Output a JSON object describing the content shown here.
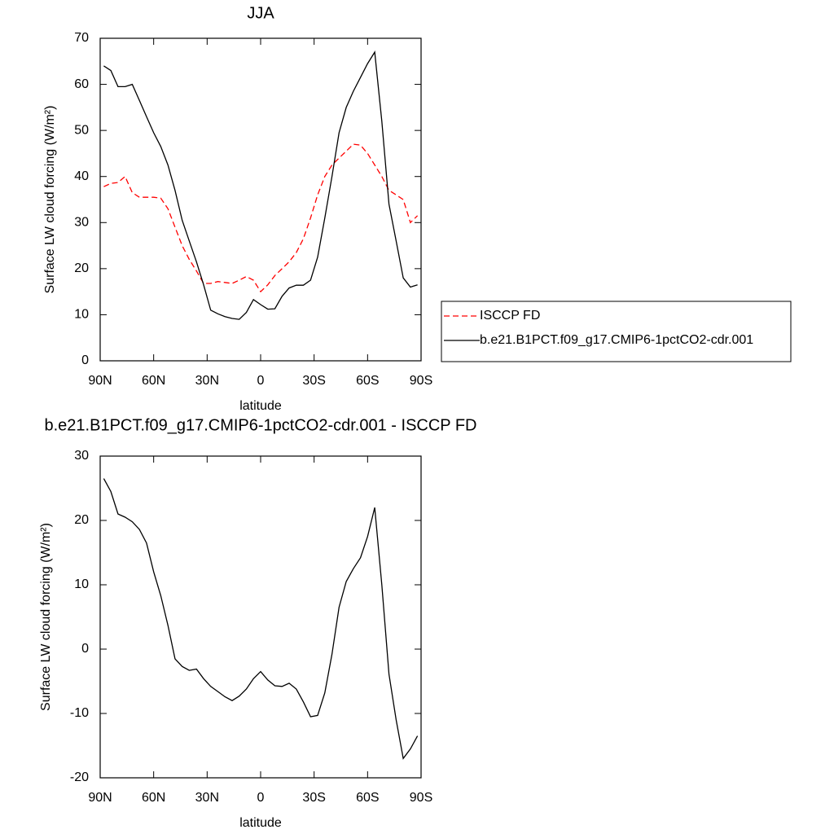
{
  "chart_data": [
    {
      "type": "line",
      "title": "JJA",
      "xlabel": "latitude",
      "ylabel": "Surface LW cloud forcing (W/m²)",
      "x": [
        88,
        84,
        80,
        76,
        72,
        68,
        64,
        60,
        56,
        52,
        48,
        44,
        40,
        36,
        32,
        28,
        24,
        20,
        16,
        12,
        8,
        4,
        0,
        -4,
        -8,
        -12,
        -16,
        -20,
        -24,
        -28,
        -32,
        -36,
        -40,
        -44,
        -48,
        -52,
        -56,
        -60,
        -64,
        -68,
        -72,
        -76,
        -80,
        -84,
        -88
      ],
      "series": [
        {
          "name": "ISCCP FD",
          "color": "#ff0000",
          "dash": true,
          "values": [
            37.8,
            38.5,
            38.7,
            40,
            36.5,
            35.5,
            35.5,
            35.5,
            35.3,
            33,
            29,
            25,
            22,
            19.5,
            16.8,
            16.8,
            17.2,
            17,
            16.8,
            17.5,
            18.3,
            17.5,
            15,
            16.5,
            18.5,
            20,
            21.5,
            23.5,
            26.5,
            31,
            36,
            40,
            42.5,
            44,
            45.5,
            47,
            46.8,
            45,
            42.5,
            40,
            37,
            36,
            35,
            30,
            31.5
          ]
        },
        {
          "name": "b.e21.B1PCT.f09_g17.CMIP6-1pctCO2-cdr.001",
          "color": "#000000",
          "dash": false,
          "values": [
            64,
            63,
            59.5,
            59.5,
            60,
            56.5,
            53,
            49.5,
            46.5,
            42.5,
            37,
            30.5,
            26,
            21.5,
            16.5,
            11,
            10.2,
            9.6,
            9.2,
            9,
            10.5,
            13.3,
            12.2,
            11.2,
            11.3,
            14,
            15.8,
            16.4,
            16.4,
            17.5,
            22.5,
            31,
            40,
            49.5,
            55,
            58.5,
            61.5,
            64.5,
            67,
            52,
            34,
            26,
            18,
            16,
            16.5
          ]
        }
      ],
      "xlim": [
        90,
        -90
      ],
      "xticks": [
        {
          "value": 90,
          "label": "90N"
        },
        {
          "value": 60,
          "label": "60N"
        },
        {
          "value": 30,
          "label": "30N"
        },
        0,
        {
          "value": -30,
          "label": "30S"
        },
        {
          "value": -60,
          "label": "60S"
        },
        {
          "value": -90,
          "label": "90S"
        }
      ],
      "ylim": [
        0,
        70
      ],
      "yticks": [
        0,
        10,
        20,
        30,
        40,
        50,
        60,
        70
      ],
      "legend": "outside-right"
    },
    {
      "type": "line",
      "title": "b.e21.B1PCT.f09_g17.CMIP6-1pctCO2-cdr.001 - ISCCP FD",
      "xlabel": "latitude",
      "ylabel": "Surface LW cloud forcing (W/m²)",
      "x": [
        88,
        84,
        80,
        76,
        72,
        68,
        64,
        60,
        56,
        52,
        48,
        44,
        40,
        36,
        32,
        28,
        24,
        20,
        16,
        12,
        8,
        4,
        0,
        -4,
        -8,
        -12,
        -16,
        -20,
        -24,
        -28,
        -32,
        -36,
        -40,
        -44,
        -48,
        -52,
        -56,
        -60,
        -64,
        -68,
        -72,
        -76,
        -80,
        -84,
        -88
      ],
      "series": [
        {
          "color": "#000000",
          "dash": false,
          "values": [
            26.5,
            24.5,
            21,
            20.5,
            19.8,
            18.6,
            16.5,
            12,
            8.3,
            3.7,
            -1.5,
            -2.7,
            -3.3,
            -3.1,
            -4.6,
            -5.8,
            -6.6,
            -7.4,
            -8,
            -7.3,
            -6.2,
            -4.6,
            -3.5,
            -4.8,
            -5.7,
            -5.8,
            -5.3,
            -6.2,
            -8.2,
            -10.5,
            -10.3,
            -6.8,
            -0.8,
            6.5,
            10.5,
            12.5,
            14.2,
            17.5,
            22,
            10,
            -3.9,
            -11,
            -17,
            -15.5,
            -13.5
          ]
        }
      ],
      "xlim": [
        90,
        -90
      ],
      "xticks": [
        {
          "value": 90,
          "label": "90N"
        },
        {
          "value": 60,
          "label": "60N"
        },
        {
          "value": 30,
          "label": "30N"
        },
        0,
        {
          "value": -30,
          "label": "30S"
        },
        {
          "value": -60,
          "label": "60S"
        },
        {
          "value": -90,
          "label": "90S"
        }
      ],
      "ylim": [
        -20,
        30
      ],
      "yticks": [
        -20,
        -10,
        0,
        10,
        20,
        30
      ]
    }
  ]
}
